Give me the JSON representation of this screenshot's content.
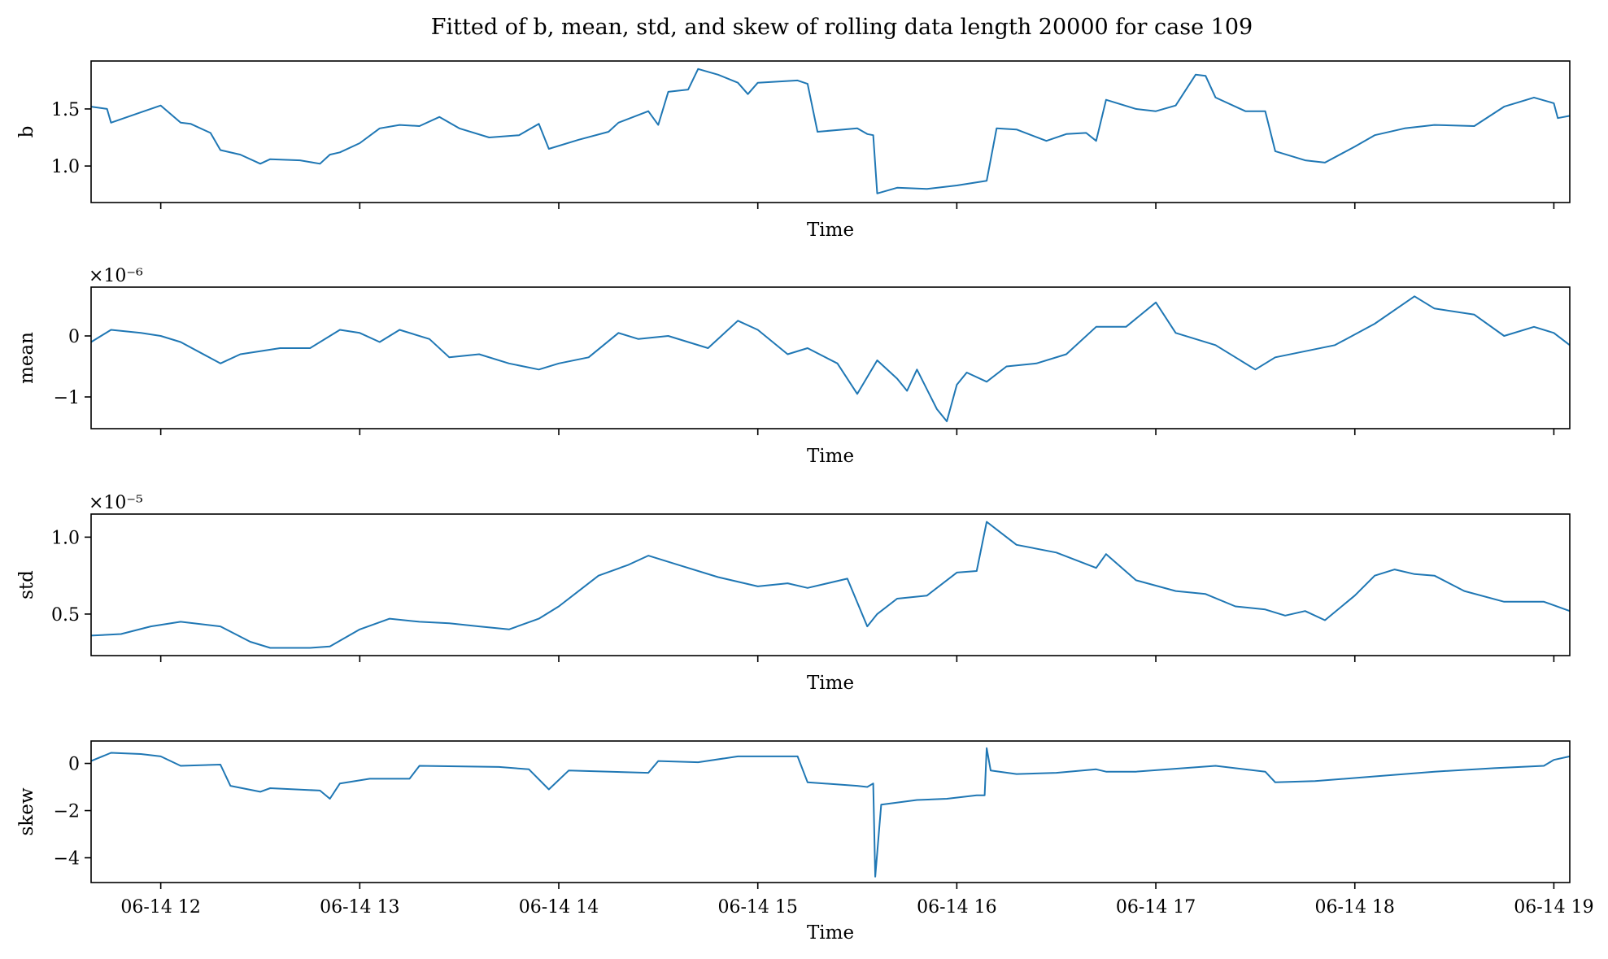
{
  "chart_data": {
    "type": "line",
    "title": "Fitted of b, mean, std, and skew of rolling data length 20000 for case 109",
    "grid": false,
    "line_color": "#1f77b4",
    "x_range": [
      "06-14 11:39",
      "06-14 19:05"
    ],
    "x_ticks": [
      "06-14 12",
      "06-14 13",
      "06-14 14",
      "06-14 15",
      "06-14 16",
      "06-14 17",
      "06-14 18",
      "06-14 19"
    ],
    "x_tick_hours": [
      12,
      13,
      14,
      15,
      16,
      17,
      18,
      19
    ],
    "x_range_hours": [
      11.65,
      19.08
    ],
    "subplots": [
      {
        "id": "b",
        "ylabel": "b",
        "xlabel": "Time",
        "offset": "",
        "ylim": [
          0.68,
          1.92
        ],
        "yticks": [
          1.0,
          1.5
        ],
        "ytick_labels": [
          "1.0",
          "1.5"
        ],
        "x_hours": [
          11.65,
          11.73,
          11.75,
          11.9,
          12.0,
          12.1,
          12.15,
          12.25,
          12.3,
          12.4,
          12.5,
          12.55,
          12.7,
          12.8,
          12.85,
          12.9,
          13.0,
          13.1,
          13.2,
          13.3,
          13.4,
          13.5,
          13.65,
          13.8,
          13.9,
          13.95,
          14.1,
          14.25,
          14.3,
          14.45,
          14.5,
          14.55,
          14.65,
          14.7,
          14.8,
          14.9,
          14.95,
          15.0,
          15.2,
          15.25,
          15.3,
          15.5,
          15.55,
          15.58,
          15.6,
          15.7,
          15.85,
          16.0,
          16.15,
          16.2,
          16.3,
          16.45,
          16.55,
          16.65,
          16.7,
          16.75,
          16.9,
          17.0,
          17.1,
          17.2,
          17.25,
          17.3,
          17.45,
          17.55,
          17.6,
          17.75,
          17.85,
          18.0,
          18.1,
          18.25,
          18.4,
          18.6,
          18.75,
          18.9,
          19.0,
          19.02,
          19.08
        ],
        "y": [
          1.52,
          1.5,
          1.38,
          1.47,
          1.53,
          1.38,
          1.37,
          1.29,
          1.14,
          1.1,
          1.02,
          1.06,
          1.05,
          1.02,
          1.1,
          1.12,
          1.2,
          1.33,
          1.36,
          1.35,
          1.43,
          1.33,
          1.25,
          1.27,
          1.37,
          1.15,
          1.23,
          1.3,
          1.38,
          1.48,
          1.36,
          1.65,
          1.67,
          1.85,
          1.8,
          1.73,
          1.63,
          1.73,
          1.75,
          1.72,
          1.3,
          1.33,
          1.28,
          1.27,
          0.76,
          0.81,
          0.8,
          0.83,
          0.87,
          1.33,
          1.32,
          1.22,
          1.28,
          1.29,
          1.22,
          1.58,
          1.5,
          1.48,
          1.53,
          1.8,
          1.79,
          1.6,
          1.48,
          1.48,
          1.13,
          1.05,
          1.03,
          1.17,
          1.27,
          1.33,
          1.36,
          1.35,
          1.52,
          1.6,
          1.55,
          1.42,
          1.44
        ]
      },
      {
        "id": "mean",
        "ylabel": "mean",
        "xlabel": "Time",
        "offset": "×10⁻⁶",
        "ylim": [
          -1.52,
          0.8
        ],
        "yticks": [
          -1,
          0
        ],
        "ytick_labels": [
          "−1",
          "0"
        ],
        "x_hours": [
          11.65,
          11.75,
          11.9,
          12.0,
          12.1,
          12.3,
          12.4,
          12.6,
          12.75,
          12.9,
          13.0,
          13.1,
          13.2,
          13.35,
          13.45,
          13.6,
          13.75,
          13.9,
          14.0,
          14.15,
          14.3,
          14.4,
          14.55,
          14.75,
          14.9,
          15.0,
          15.15,
          15.25,
          15.4,
          15.5,
          15.6,
          15.7,
          15.75,
          15.8,
          15.9,
          15.95,
          16.0,
          16.05,
          16.15,
          16.25,
          16.4,
          16.55,
          16.7,
          16.85,
          17.0,
          17.1,
          17.3,
          17.5,
          17.6,
          17.75,
          17.9,
          18.1,
          18.3,
          18.4,
          18.6,
          18.75,
          18.9,
          19.0,
          19.08
        ],
        "y": [
          -0.1,
          0.1,
          0.05,
          0.0,
          -0.1,
          -0.45,
          -0.3,
          -0.2,
          -0.2,
          0.1,
          0.05,
          -0.1,
          0.1,
          -0.05,
          -0.35,
          -0.3,
          -0.45,
          -0.55,
          -0.45,
          -0.35,
          0.05,
          -0.05,
          0.0,
          -0.2,
          0.25,
          0.1,
          -0.3,
          -0.2,
          -0.45,
          -0.95,
          -0.4,
          -0.7,
          -0.9,
          -0.55,
          -1.2,
          -1.4,
          -0.8,
          -0.6,
          -0.75,
          -0.5,
          -0.45,
          -0.3,
          0.15,
          0.15,
          0.55,
          0.05,
          -0.15,
          -0.55,
          -0.35,
          -0.25,
          -0.15,
          0.2,
          0.65,
          0.45,
          0.35,
          0.0,
          0.15,
          0.05,
          -0.15
        ]
      },
      {
        "id": "std",
        "ylabel": "std",
        "xlabel": "Time",
        "offset": "×10⁻⁵",
        "ylim": [
          0.23,
          1.15
        ],
        "yticks": [
          0.5,
          1.0
        ],
        "ytick_labels": [
          "0.5",
          "1.0"
        ],
        "x_hours": [
          11.65,
          11.8,
          11.95,
          12.1,
          12.3,
          12.45,
          12.55,
          12.75,
          12.85,
          13.0,
          13.15,
          13.3,
          13.45,
          13.6,
          13.75,
          13.9,
          14.0,
          14.1,
          14.2,
          14.35,
          14.45,
          14.6,
          14.8,
          15.0,
          15.15,
          15.25,
          15.45,
          15.55,
          15.6,
          15.7,
          15.85,
          16.0,
          16.1,
          16.15,
          16.2,
          16.3,
          16.5,
          16.7,
          16.75,
          16.9,
          17.1,
          17.25,
          17.4,
          17.55,
          17.65,
          17.75,
          17.85,
          18.0,
          18.1,
          18.2,
          18.3,
          18.4,
          18.55,
          18.75,
          18.95,
          19.08
        ],
        "y": [
          0.36,
          0.37,
          0.42,
          0.45,
          0.42,
          0.32,
          0.28,
          0.28,
          0.29,
          0.4,
          0.47,
          0.45,
          0.44,
          0.42,
          0.4,
          0.47,
          0.55,
          0.65,
          0.75,
          0.82,
          0.88,
          0.82,
          0.74,
          0.68,
          0.7,
          0.67,
          0.73,
          0.42,
          0.5,
          0.6,
          0.62,
          0.77,
          0.78,
          1.1,
          1.05,
          0.95,
          0.9,
          0.8,
          0.89,
          0.72,
          0.65,
          0.63,
          0.55,
          0.53,
          0.49,
          0.52,
          0.46,
          0.62,
          0.75,
          0.79,
          0.76,
          0.75,
          0.65,
          0.58,
          0.58,
          0.52
        ]
      },
      {
        "id": "skew",
        "ylabel": "skew",
        "xlabel": "Time",
        "offset": "",
        "ylim": [
          -5.05,
          0.95
        ],
        "yticks": [
          -4,
          -2,
          0
        ],
        "ytick_labels": [
          "−4",
          "−2",
          "0"
        ],
        "x_hours": [
          11.65,
          11.75,
          11.9,
          12.0,
          12.1,
          12.3,
          12.35,
          12.5,
          12.55,
          12.8,
          12.85,
          12.9,
          13.05,
          13.25,
          13.3,
          13.7,
          13.85,
          13.95,
          14.05,
          14.45,
          14.5,
          14.7,
          14.9,
          15.2,
          15.25,
          15.5,
          15.55,
          15.58,
          15.59,
          15.62,
          15.8,
          15.95,
          16.1,
          16.14,
          16.15,
          16.17,
          16.3,
          16.5,
          16.7,
          16.75,
          16.9,
          17.3,
          17.55,
          17.6,
          17.8,
          18.1,
          18.4,
          18.7,
          18.95,
          19.0,
          19.08
        ],
        "y": [
          0.1,
          0.45,
          0.4,
          0.3,
          -0.1,
          -0.05,
          -0.95,
          -1.2,
          -1.05,
          -1.15,
          -1.5,
          -0.85,
          -0.65,
          -0.65,
          -0.1,
          -0.15,
          -0.25,
          -1.1,
          -0.3,
          -0.4,
          0.1,
          0.05,
          0.3,
          0.3,
          -0.8,
          -0.95,
          -1.0,
          -0.85,
          -4.8,
          -1.75,
          -1.55,
          -1.5,
          -1.35,
          -1.35,
          0.65,
          -0.3,
          -0.45,
          -0.4,
          -0.25,
          -0.35,
          -0.35,
          -0.1,
          -0.35,
          -0.8,
          -0.75,
          -0.55,
          -0.35,
          -0.2,
          -0.1,
          0.15,
          0.3
        ]
      }
    ]
  }
}
